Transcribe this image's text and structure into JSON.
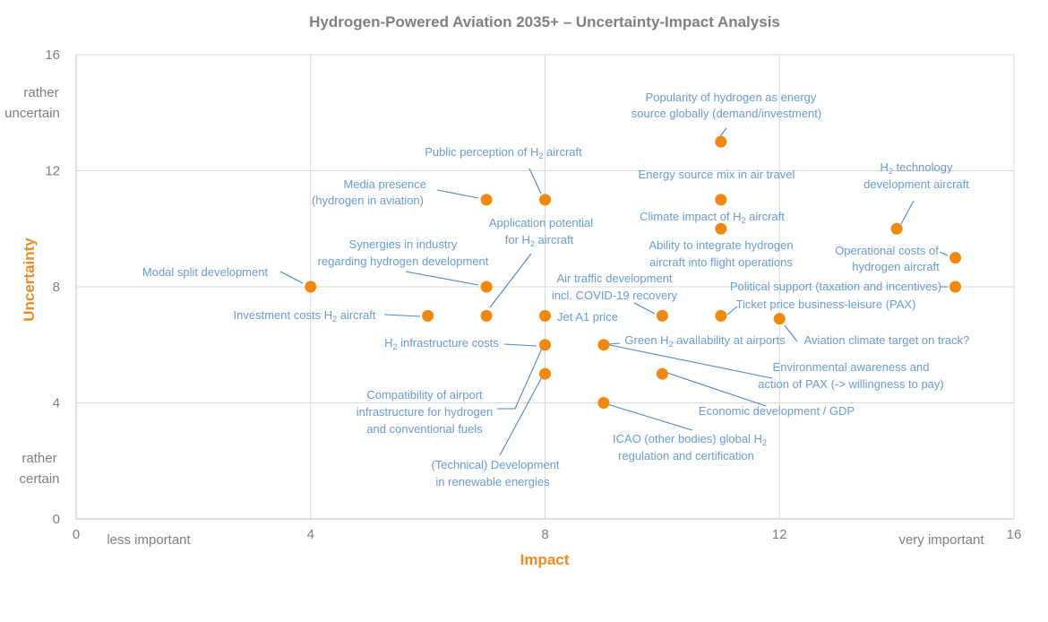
{
  "chart_data": {
    "type": "scatter",
    "title": "Hydrogen-Powered Aviation 2035+ – Uncertainty-Impact Analysis",
    "xlabel": "Impact",
    "ylabel": "Uncertainty",
    "xlim": [
      0,
      16
    ],
    "ylim": [
      0,
      16
    ],
    "xticks": [
      "0",
      "4",
      "8",
      "12",
      "16"
    ],
    "yticks": [
      "0",
      "4",
      "8",
      "12",
      "16"
    ],
    "x_axis_annotations": {
      "low": "less important",
      "high": "very important"
    },
    "y_axis_annotations": {
      "high": [
        "rather",
        "uncertain"
      ],
      "low": [
        "rather",
        "certain"
      ]
    },
    "grid": true,
    "marker_color": "#f0880e",
    "label_color": "#6a9bd1",
    "axis_label_color": "#f28a1f",
    "points": [
      {
        "x": 11,
        "y": 13,
        "label": [
          [
            "Popularity of hydrogen as energy"
          ],
          [
            "source globally (demand/investment)"
          ]
        ]
      },
      {
        "x": 8,
        "y": 11,
        "label": [
          [
            "Public perception of H",
            "2",
            " aircraft"
          ]
        ]
      },
      {
        "x": 7,
        "y": 11,
        "label": [
          [
            "Media presence"
          ],
          [
            "(hydrogen in aviation)"
          ]
        ]
      },
      {
        "x": 11,
        "y": 11,
        "label": [
          [
            "Energy source mix in air travel"
          ]
        ]
      },
      {
        "x": 14,
        "y": 10,
        "label": [
          [
            "H",
            "2",
            " technology"
          ],
          [
            "development aircraft"
          ]
        ]
      },
      {
        "x": 11,
        "y": 10,
        "label": [
          [
            "Climate impact of H",
            "2",
            " aircraft"
          ],
          [
            ""
          ],
          [
            "Ability to integrate hydrogen"
          ],
          [
            "aircraft into flight operations"
          ]
        ]
      },
      {
        "x": 15,
        "y": 9,
        "label": [
          [
            "Operational costs of"
          ],
          [
            "hydrogen aircraft"
          ]
        ]
      },
      {
        "x": 7,
        "y": 8,
        "label": [
          [
            "Synergies in industry"
          ],
          [
            "regarding hydrogen development"
          ]
        ]
      },
      {
        "x": 4,
        "y": 8,
        "label": [
          [
            "Modal split development"
          ]
        ]
      },
      {
        "x": 15,
        "y": 8,
        "label": [
          [
            "Political support (taxation and incentives)"
          ]
        ]
      },
      {
        "x": 7,
        "y": 7,
        "label": [
          [
            "Application potential"
          ],
          [
            "for H",
            "2",
            " aircraft"
          ]
        ]
      },
      {
        "x": 6,
        "y": 7,
        "label": [
          [
            "Investment costs H",
            "2",
            " aircraft"
          ]
        ]
      },
      {
        "x": 8,
        "y": 7,
        "label": [
          [
            "Jet A1 price"
          ]
        ]
      },
      {
        "x": 10,
        "y": 7,
        "label": [
          [
            "Air traffic development"
          ],
          [
            "incl. COVID-19 recovery"
          ]
        ]
      },
      {
        "x": 11,
        "y": 7,
        "label": [
          [
            "Ticket price business-leisure (PAX)"
          ]
        ]
      },
      {
        "x": 12,
        "y": 6.9,
        "label": [
          [
            "Aviation climate target on track?"
          ]
        ]
      },
      {
        "x": 8,
        "y": 6,
        "label": [
          [
            "H",
            "2",
            " infrastructure costs"
          ],
          [
            "Compatibility of airport"
          ],
          [
            "infrastructure for hydrogen"
          ],
          [
            "and conventional fuels"
          ]
        ]
      },
      {
        "x": 9,
        "y": 6,
        "label": [
          [
            "Green H",
            "2",
            " availability at airports"
          ],
          [
            "Environmental awareness and"
          ],
          [
            "action of PAX (-> willingness to pay)"
          ]
        ]
      },
      {
        "x": 8,
        "y": 5,
        "label": [
          [
            "(Technical) Development"
          ],
          [
            "in renewable energies"
          ]
        ]
      },
      {
        "x": 10,
        "y": 5,
        "label": [
          [
            "Economic development / GDP"
          ]
        ]
      },
      {
        "x": 9,
        "y": 4,
        "label": [
          [
            "ICAO (other bodies) global H",
            "2"
          ],
          [
            "regulation and certification"
          ]
        ]
      }
    ]
  }
}
